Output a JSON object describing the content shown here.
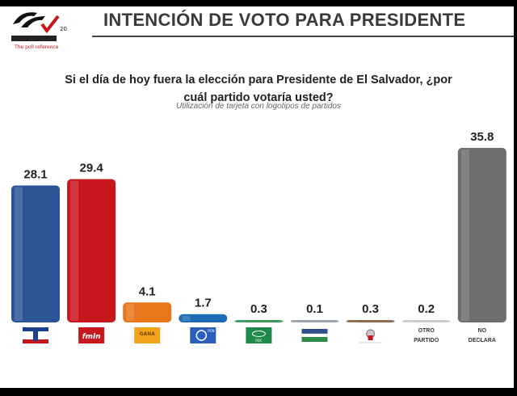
{
  "header": {
    "title": "INTENCIÓN DE VOTO PARA PRESIDENTE",
    "logo_text": "CONSULTA MITOFSKY",
    "logo_tagline": "The poll reference",
    "logo_badge": "20"
  },
  "question": "Si el día de hoy fuera la elección para Presidente de El Salvador, ¿por cuál partido votaría usted?",
  "subtitle": "Utilización de tarjeta con logotipos de partidos",
  "chart_data": {
    "type": "bar",
    "title": "",
    "xlabel": "",
    "ylabel": "",
    "ylim": [
      0,
      36
    ],
    "grid": false,
    "categories": [
      "ARENA",
      "fmln",
      "GANA",
      "PCN",
      "PDC",
      "CD",
      "DS",
      "OTRO PARTIDO",
      "NO DECLARA"
    ],
    "category_display": [
      "logo",
      "logo",
      "logo",
      "logo",
      "logo",
      "logo",
      "logo",
      "text",
      "text"
    ],
    "values": [
      28.1,
      29.4,
      4.1,
      1.7,
      0.3,
      0.1,
      0.3,
      0.2,
      35.8
    ],
    "data_labels": [
      "28.1",
      "29.4",
      "4.1",
      "1.7",
      "0.3",
      "0.1",
      "0.3",
      "0.2",
      "35.8"
    ],
    "colors": [
      "#2b5597",
      "#c8161d",
      "#e8761a",
      "#1f6bb5",
      "#3b9a5e",
      "#9aa3ad",
      "#8a6a50",
      "#cccccc",
      "#6e6e6e"
    ]
  }
}
